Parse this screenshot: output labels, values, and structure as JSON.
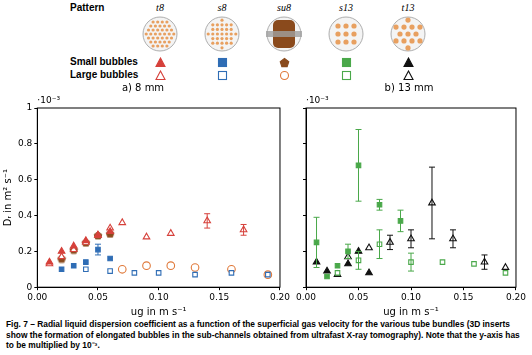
{
  "legend_table": {
    "title": "Pattern",
    "rows": [
      "Small bubbles",
      "Large bubbles"
    ]
  },
  "caption": "Fig. 7 – Radial liquid dispersion coefficient as a function of the superficial gas velocity for the various tube bundles (3D inserts show the formation of elongated bubbles in the sub-channels obtained from ultrafast X-ray tomography). Note that the y-axis has to be multiplied by 10⁻³.",
  "chart_data": [
    {
      "type": "scatter",
      "title": "a) 8 mm",
      "annotation": "·10⁻³",
      "x_label": "ug in m s⁻¹",
      "y_label": "Dᵣ in m² s⁻¹",
      "xlim": [
        0,
        0.2
      ],
      "ylim": [
        0,
        1
      ],
      "xticks": [
        {
          "value": 0,
          "label": "0.00"
        },
        {
          "value": 0.05,
          "label": "0.05"
        },
        {
          "value": 0.1,
          "label": "0.10"
        },
        {
          "value": 0.15,
          "label": "0.15"
        },
        {
          "value": 0.2,
          "label": "0.20"
        }
      ],
      "yticks": [
        0,
        0.2,
        0.4,
        0.6,
        0.8,
        1
      ],
      "grid": false,
      "series": [
        {
          "name": "t8",
          "bubbles": "Small bubbles",
          "color": "#d6413b",
          "marker": "filled-triangle",
          "x": [
            0.01,
            0.02,
            0.03,
            0.04,
            0.05,
            0.06
          ],
          "values": [
            0.14,
            0.2,
            0.23,
            0.26,
            0.29,
            0.31
          ]
        },
        {
          "name": "t8",
          "bubbles": "Large bubbles",
          "color": "#d6413b",
          "marker": "open-triangle",
          "x": [
            0.01,
            0.02,
            0.03,
            0.04,
            0.05,
            0.06,
            0.07,
            0.09,
            0.11,
            0.14,
            0.17
          ],
          "values": [
            0.13,
            0.17,
            0.21,
            0.25,
            0.29,
            0.33,
            0.36,
            0.28,
            0.3,
            0.37,
            0.32
          ],
          "errors": [
            null,
            null,
            null,
            null,
            null,
            null,
            null,
            null,
            null,
            0.04,
            0.03
          ]
        },
        {
          "name": "s8",
          "bubbles": "Small bubbles",
          "color": "#2f6db5",
          "marker": "filled-square",
          "x": [
            0.02,
            0.03,
            0.04,
            0.05,
            0.06
          ],
          "values": [
            0.1,
            0.12,
            0.14,
            0.21,
            0.16
          ],
          "errors": [
            null,
            null,
            null,
            0.03,
            null
          ]
        },
        {
          "name": "s8",
          "bubbles": "Large bubbles",
          "color": "#2f6db5",
          "marker": "open-square",
          "x": [
            0.04,
            0.06,
            0.08,
            0.1,
            0.13,
            0.16,
            0.19
          ],
          "values": [
            0.1,
            0.09,
            0.08,
            0.08,
            0.07,
            0.08,
            0.07
          ]
        },
        {
          "name": "su8",
          "bubbles": "Small bubbles",
          "color": "#8a4a1c",
          "marker": "filled-pentagon",
          "x": [
            0.02,
            0.03,
            0.04,
            0.05,
            0.06
          ],
          "values": [
            0.16,
            0.21,
            0.25,
            0.29,
            0.3
          ]
        },
        {
          "name": "su8",
          "bubbles": "Large bubbles",
          "color": "#e0793a",
          "marker": "open-circle",
          "x": [
            0.07,
            0.09,
            0.11,
            0.13,
            0.16,
            0.19
          ],
          "values": [
            0.1,
            0.12,
            0.12,
            0.11,
            0.1,
            0.07
          ]
        }
      ]
    },
    {
      "type": "scatter",
      "title": "b) 13 mm",
      "annotation": "·10⁻³",
      "x_label": "ug in m s⁻¹",
      "xlim": [
        0,
        0.2
      ],
      "ylim": [
        0,
        1
      ],
      "xticks": [
        {
          "value": 0,
          "label": "0.00"
        },
        {
          "value": 0.05,
          "label": "0.05"
        },
        {
          "value": 0.1,
          "label": "0.10"
        },
        {
          "value": 0.15,
          "label": "0.15"
        },
        {
          "value": 0.2,
          "label": "0.20"
        }
      ],
      "yticks": [
        0,
        0.2,
        0.4,
        0.6,
        0.8,
        1
      ],
      "grid": false,
      "tick_labels": "x",
      "series": [
        {
          "name": "s13",
          "bubbles": "Small bubbles",
          "color": "#4aa84a",
          "marker": "filled-square",
          "x": [
            0.01,
            0.02,
            0.03,
            0.04,
            0.05,
            0.07,
            0.09
          ],
          "values": [
            0.25,
            0.06,
            0.12,
            0.2,
            0.68,
            0.46,
            0.37
          ],
          "errors": [
            0.14,
            null,
            null,
            0.04,
            0.2,
            0.03,
            0.06
          ]
        },
        {
          "name": "s13",
          "bubbles": "Large bubbles",
          "color": "#4aa84a",
          "marker": "open-square",
          "x": [
            0.03,
            0.05,
            0.07,
            0.1,
            0.13,
            0.16,
            0.19
          ],
          "values": [
            0.08,
            0.15,
            0.24,
            0.14,
            0.14,
            0.13,
            0.08
          ],
          "errors": [
            null,
            0.05,
            0.08,
            0.05,
            null,
            null,
            null
          ]
        },
        {
          "name": "t13",
          "bubbles": "Small bubbles",
          "color": "#111111",
          "marker": "filled-triangle",
          "x": [
            0.01,
            0.02,
            0.03,
            0.04,
            0.05,
            0.06
          ],
          "values": [
            0.14,
            0.09,
            0.07,
            0.13,
            0.2,
            0.08
          ]
        },
        {
          "name": "t13",
          "bubbles": "Large bubbles",
          "color": "#111111",
          "marker": "open-triangle",
          "x": [
            0.04,
            0.06,
            0.08,
            0.1,
            0.12,
            0.14,
            0.17,
            0.19
          ],
          "values": [
            0.17,
            0.22,
            0.25,
            0.27,
            0.47,
            0.27,
            0.14,
            0.11
          ],
          "errors": [
            null,
            null,
            0.04,
            0.05,
            0.2,
            0.05,
            0.04,
            null
          ]
        }
      ]
    }
  ]
}
